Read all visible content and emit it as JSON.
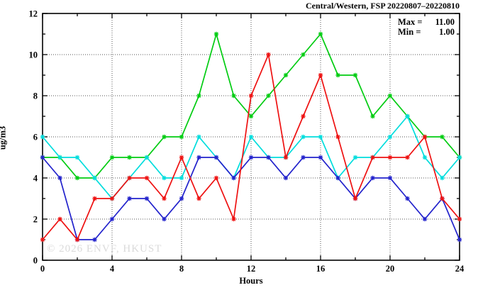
{
  "title": "Central/Western, FSP 20220807–20220810",
  "legend": {
    "max_label": "Max =",
    "max_value": "11.00",
    "min_label": "Min =",
    "min_value": "1.00"
  },
  "watermark": "© 2026 ENVF, HKUST",
  "chart_data": {
    "type": "line",
    "title": "Central/Western, FSP 20220807–20220810",
    "xlabel": "Hours",
    "ylabel": "ug/m3",
    "xlim": [
      0,
      24
    ],
    "ylim": [
      0,
      12
    ],
    "x_major_ticks": [
      0,
      4,
      8,
      12,
      16,
      20,
      24
    ],
    "x_minor_step": 2,
    "y_major_ticks": [
      0,
      2,
      4,
      6,
      8,
      10,
      12
    ],
    "y_minor_step": 1,
    "grid": true,
    "legend_position": "top-right-inside",
    "annotations": [
      "Max = 11.00",
      "Min = 1.00"
    ],
    "x": [
      0,
      1,
      2,
      3,
      4,
      5,
      6,
      7,
      8,
      9,
      10,
      11,
      12,
      13,
      14,
      15,
      16,
      17,
      18,
      19,
      20,
      21,
      22,
      23,
      24
    ],
    "series": [
      {
        "name": "series-green",
        "color": "#00cc11",
        "values": [
          5,
          5,
          4,
          4,
          5,
          5,
          5,
          6,
          6,
          8,
          11,
          8,
          7,
          8,
          9,
          10,
          11,
          9,
          9,
          7,
          8,
          7,
          6,
          6,
          5
        ]
      },
      {
        "name": "series-cyan",
        "color": "#00dddd",
        "values": [
          6,
          5,
          5,
          4,
          3,
          4,
          5,
          4,
          4,
          6,
          5,
          4,
          6,
          5,
          5,
          6,
          6,
          4,
          5,
          5,
          6,
          7,
          5,
          4,
          5
        ]
      },
      {
        "name": "series-blue",
        "color": "#2222cc",
        "values": [
          5,
          4,
          1,
          1,
          2,
          3,
          3,
          2,
          3,
          5,
          5,
          4,
          5,
          5,
          4,
          5,
          5,
          4,
          3,
          4,
          4,
          3,
          2,
          3,
          1
        ]
      },
      {
        "name": "series-red",
        "color": "#ee1111",
        "values": [
          1,
          2,
          1,
          3,
          3,
          4,
          4,
          3,
          5,
          3,
          4,
          2,
          8,
          10,
          5,
          7,
          9,
          6,
          3,
          5,
          5,
          5,
          6,
          3,
          2
        ]
      }
    ]
  }
}
